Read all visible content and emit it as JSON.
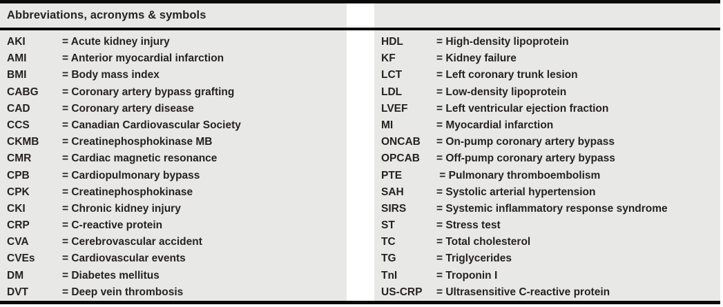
{
  "header": {
    "title": "Abbreviations, acronyms & symbols"
  },
  "table": {
    "left_column": [
      {
        "term": "AKI",
        "definition": "= Acute kidney injury"
      },
      {
        "term": "AMI",
        "definition": "= Anterior myocardial infarction"
      },
      {
        "term": "BMI",
        "definition": "= Body mass index"
      },
      {
        "term": "CABG",
        "definition": "= Coronary artery bypass grafting"
      },
      {
        "term": "CAD",
        "definition": "= Coronary artery disease"
      },
      {
        "term": "CCS",
        "definition": "= Canadian Cardiovascular Society"
      },
      {
        "term": "CKMB",
        "definition": "= Creatinephosphokinase MB"
      },
      {
        "term": "CMR",
        "definition": "= Cardiac magnetic resonance"
      },
      {
        "term": "CPB",
        "definition": "= Cardiopulmonary bypass"
      },
      {
        "term": "CPK",
        "definition": "= Creatinephosphokinase"
      },
      {
        "term": "CKI",
        "definition": "= Chronic kidney injury"
      },
      {
        "term": "CRP",
        "definition": "= C-reactive protein"
      },
      {
        "term": "CVA",
        "definition": "= Cerebrovascular accident"
      },
      {
        "term": "CVEs",
        "definition": "= Cardiovascular events"
      },
      {
        "term": "DM",
        "definition": "= Diabetes mellitus"
      },
      {
        "term": "DVT",
        "definition": "= Deep vein thrombosis"
      }
    ],
    "right_column": [
      {
        "term": "HDL",
        "definition": "= High-density lipoprotein"
      },
      {
        "term": "KF",
        "definition": "= Kidney failure"
      },
      {
        "term": "LCT",
        "definition": "= Left coronary trunk lesion"
      },
      {
        "term": "LDL",
        "definition": "= Low-density lipoprotein"
      },
      {
        "term": "LVEF",
        "definition": "= Left ventricular ejection fraction"
      },
      {
        "term": "MI",
        "definition": "= Myocardial infarction"
      },
      {
        "term": "ONCAB",
        "definition": "= On-pump coronary artery bypass"
      },
      {
        "term": "OPCAB",
        "definition": "= Off-pump coronary artery bypass"
      },
      {
        "term": "PTE",
        "definition": " = Pulmonary thromboembolism"
      },
      {
        "term": "SAH",
        "definition": "= Systolic arterial hypertension"
      },
      {
        "term": "SIRS",
        "definition": "= Systemic inflammatory response syndrome"
      },
      {
        "term": "ST",
        "definition": "= Stress test"
      },
      {
        "term": "TC",
        "definition": "= Total cholesterol"
      },
      {
        "term": "TG",
        "definition": "= Triglycerides"
      },
      {
        "term": "TnI",
        "definition": "= Troponin I"
      },
      {
        "term": "US-CRP",
        "definition": "= Ultrasensitive C-reactive protein"
      }
    ]
  },
  "colors": {
    "panel_bg": "#e8e8e7",
    "rule": "#0a0a0a",
    "text": "#262223"
  }
}
